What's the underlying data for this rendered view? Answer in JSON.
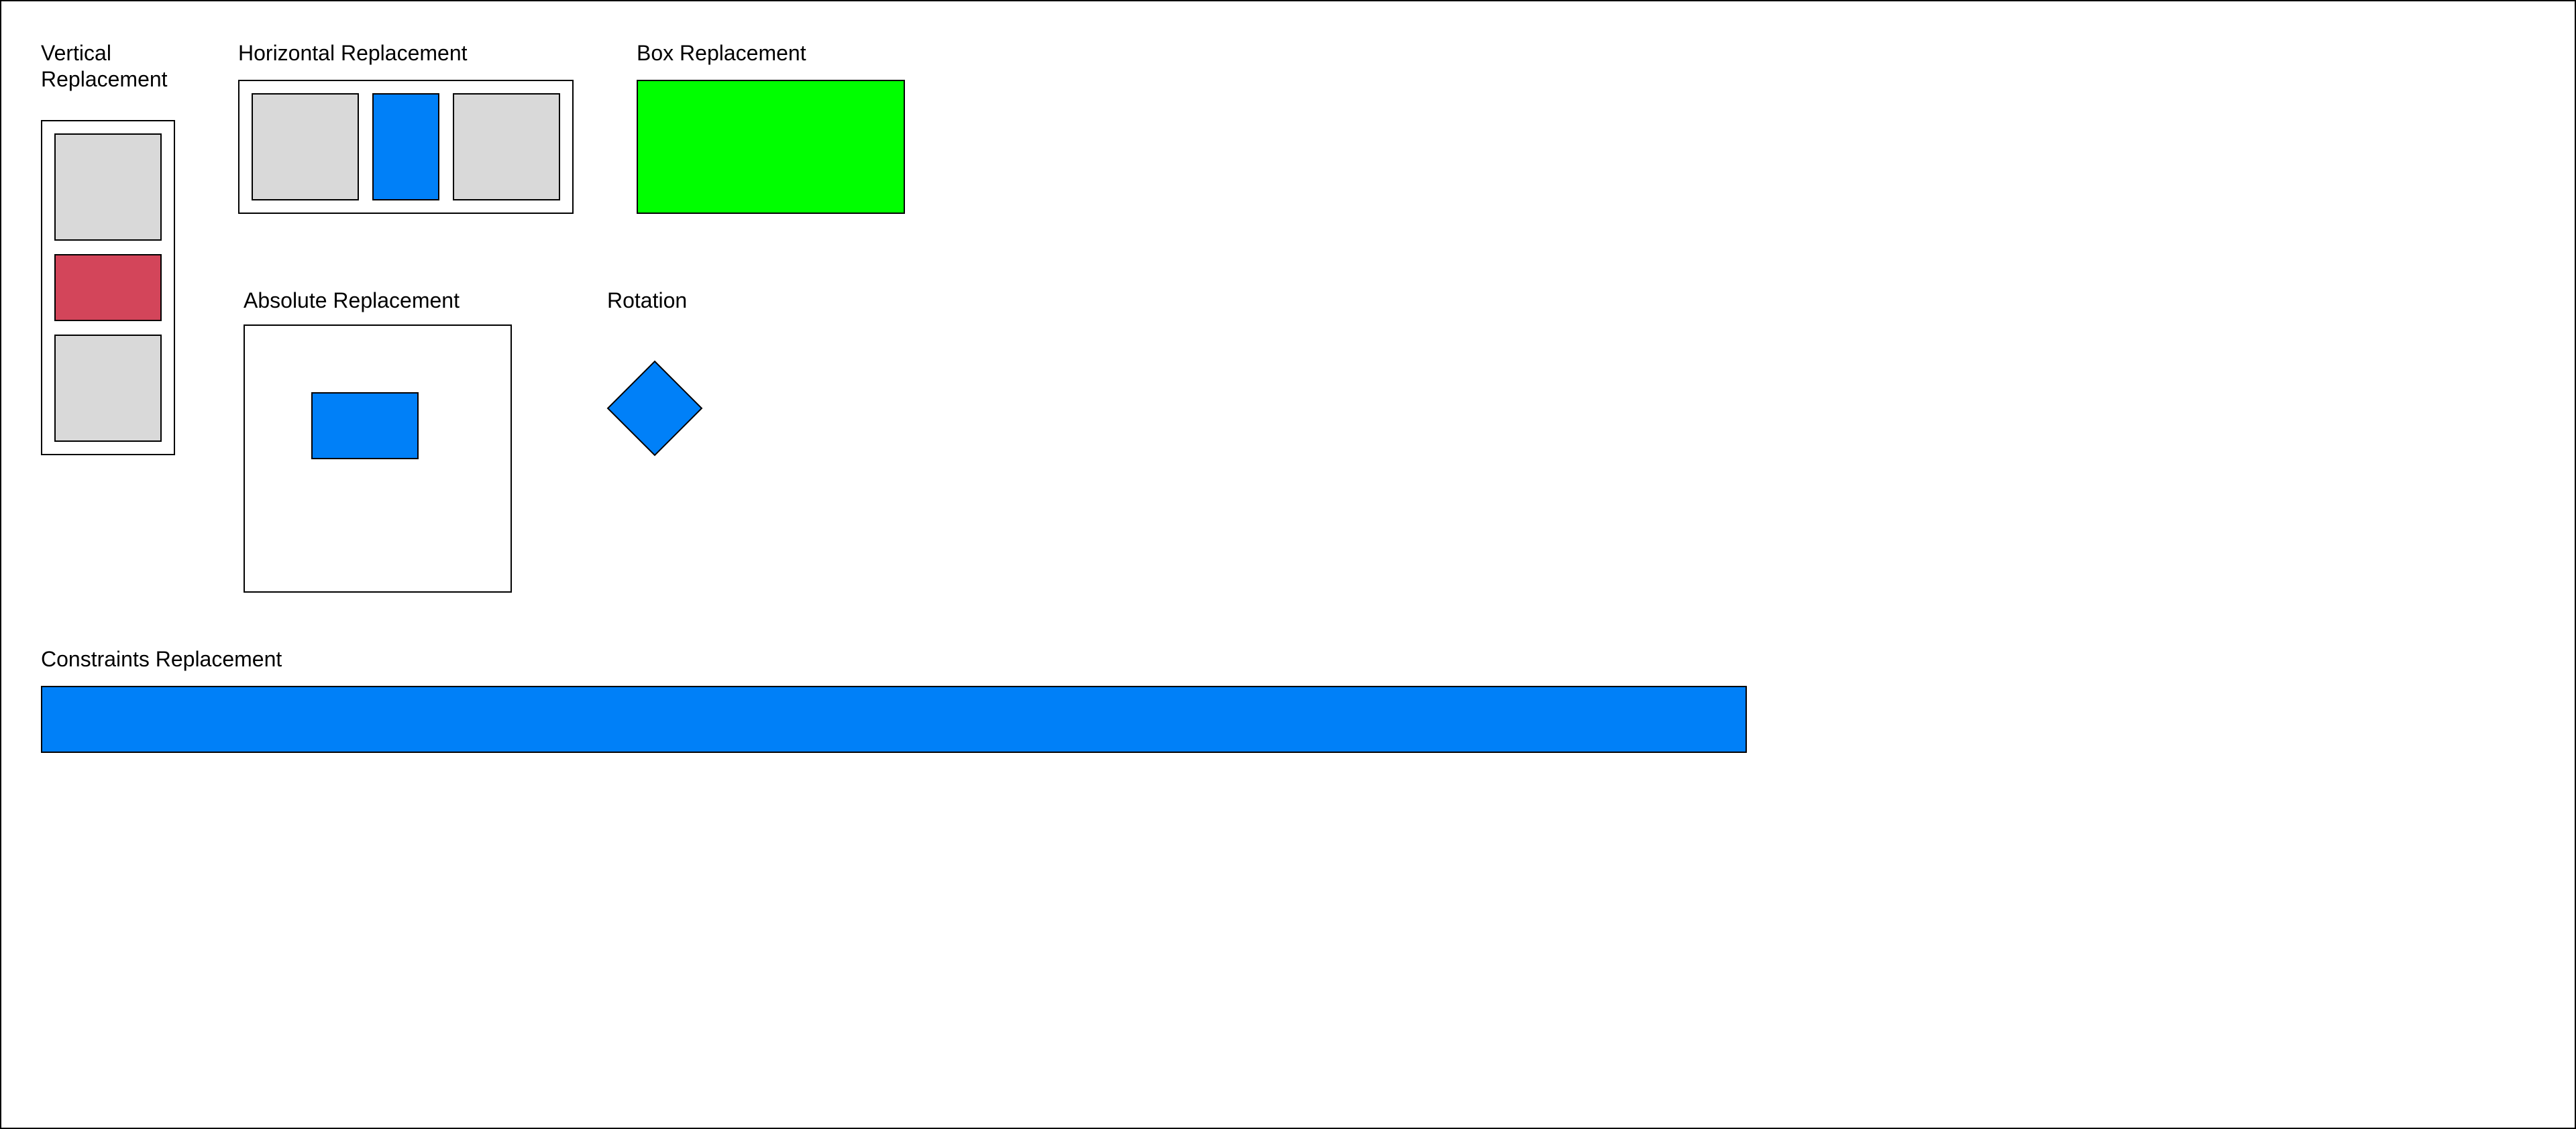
{
  "labels": {
    "vertical": "Vertical\nReplacement",
    "horizontal": "Horizontal Replacement",
    "box": "Box Replacement",
    "absolute": "Absolute Replacement",
    "rotation": "Rotation",
    "constraints": "Constraints Replacement"
  },
  "colors": {
    "placeholder": "#d9d9d9",
    "red": "#d3455a",
    "blue": "#0080f8",
    "green": "#00ff00",
    "stroke": "#000000"
  }
}
